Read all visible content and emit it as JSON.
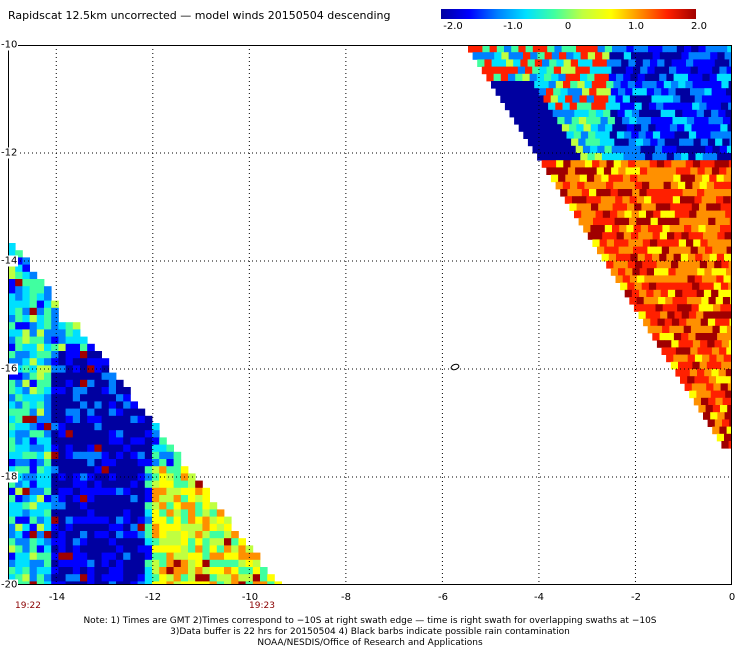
{
  "title": "Rapidscat 12.5km uncorrected — model winds 20150504 descending",
  "colorbar": {
    "ticks": [
      "-2.0",
      "-1.0",
      "0",
      "1.0",
      "2.0"
    ],
    "range": [
      -2.0,
      2.0
    ],
    "colors": [
      "#0000a0",
      "#0000ff",
      "#0080ff",
      "#00e0ff",
      "#40ffa0",
      "#c0ff40",
      "#ffff00",
      "#ff9000",
      "#ff2000",
      "#a00000"
    ]
  },
  "map": {
    "lon_range": [
      -15,
      0
    ],
    "lat_range": [
      -20,
      -10
    ],
    "lat_labels": [
      "-10",
      "-12",
      "-14",
      "-16",
      "-18",
      "-20"
    ],
    "lon_labels": [
      "-14",
      "-12",
      "-10",
      "-8",
      "-6",
      "-4",
      "-2",
      "0"
    ],
    "gridlines": "dotted",
    "contour_mark": {
      "lon": -5.8,
      "lat": -16.0
    },
    "swath_times": [
      {
        "label": "19:22",
        "lon": -15
      },
      {
        "label": "19:23",
        "lon": -10
      }
    ]
  },
  "notes": [
    "Note: 1) Times are GMT 2)Times correspond to −10S at right swath edge — time is right swath for overlapping swaths at −10S",
    "3)Data buffer is 22 hrs for 20150504 4) Black barbs indicate possible rain contamination",
    "NOAA/NESDIS/Office of Research and Applications"
  ]
}
